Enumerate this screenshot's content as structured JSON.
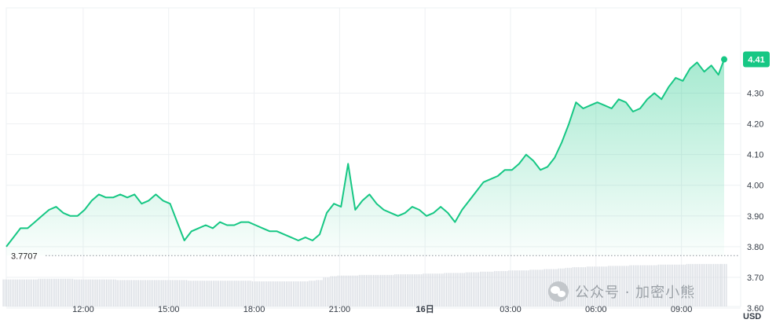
{
  "chart_data": {
    "type": "area",
    "ylim": [
      3.6,
      4.46
    ],
    "y_ticks": [
      "4.30",
      "4.20",
      "4.10",
      "4.00",
      "3.90",
      "3.80",
      "3.70",
      "3.60"
    ],
    "y_tick_values": [
      4.3,
      4.2,
      4.1,
      4.0,
      3.9,
      3.8,
      3.7,
      3.6
    ],
    "x_ticks": [
      "12:00",
      "15:00",
      "18:00",
      "21:00",
      "16日",
      "03:00",
      "06:00",
      "09:00"
    ],
    "x_tick_hours": [
      3,
      6,
      9,
      12,
      15,
      18,
      21,
      24
    ],
    "currency": "USD",
    "current_price": "4.41",
    "current_value": 4.41,
    "baseline_label": "3.7707",
    "baseline_value": 3.7707,
    "x_range_hours": [
      0.3,
      25.5
    ],
    "line_color": "#16c784",
    "watermark": "公众号 · 加密小熊",
    "series": [
      {
        "x": [
          0.3,
          0.55,
          0.8,
          1.05,
          1.3,
          1.55,
          1.8,
          2.05,
          2.3,
          2.55,
          2.8,
          3.05,
          3.3,
          3.55,
          3.8,
          4.05,
          4.3,
          4.55,
          4.8,
          5.05,
          5.3,
          5.55,
          5.8,
          6.05,
          6.3,
          6.55,
          6.8,
          7.05,
          7.3,
          7.55,
          7.8,
          8.05,
          8.3,
          8.55,
          8.8,
          9.05,
          9.3,
          9.55,
          9.8,
          10.05,
          10.3,
          10.55,
          10.8,
          11.05,
          11.3,
          11.55,
          11.8,
          12.05,
          12.3,
          12.55,
          12.8,
          13.05,
          13.3,
          13.55,
          13.8,
          14.05,
          14.3,
          14.55,
          14.8,
          15.05,
          15.3,
          15.55,
          15.8,
          16.05,
          16.3,
          16.55,
          16.8,
          17.05,
          17.3,
          17.55,
          17.8,
          18.05,
          18.3,
          18.55,
          18.8,
          19.05,
          19.3,
          19.55,
          19.8,
          20.05,
          20.3,
          20.55,
          20.8,
          21.05,
          21.3,
          21.55,
          21.8,
          22.05,
          22.3,
          22.55,
          22.8,
          23.05,
          23.3,
          23.55,
          23.8,
          24.05,
          24.3,
          24.55,
          24.8,
          25.05,
          25.3,
          25.5
        ],
        "values": [
          3.8,
          3.83,
          3.86,
          3.86,
          3.88,
          3.9,
          3.92,
          3.93,
          3.91,
          3.9,
          3.9,
          3.92,
          3.95,
          3.97,
          3.96,
          3.96,
          3.97,
          3.96,
          3.97,
          3.94,
          3.95,
          3.97,
          3.95,
          3.94,
          3.88,
          3.82,
          3.85,
          3.86,
          3.87,
          3.86,
          3.88,
          3.87,
          3.87,
          3.88,
          3.88,
          3.87,
          3.86,
          3.85,
          3.85,
          3.84,
          3.83,
          3.82,
          3.83,
          3.82,
          3.84,
          3.91,
          3.94,
          3.93,
          4.07,
          3.92,
          3.95,
          3.97,
          3.94,
          3.92,
          3.91,
          3.9,
          3.91,
          3.93,
          3.92,
          3.9,
          3.91,
          3.93,
          3.91,
          3.88,
          3.92,
          3.95,
          3.98,
          4.01,
          4.02,
          4.03,
          4.05,
          4.05,
          4.07,
          4.1,
          4.08,
          4.05,
          4.06,
          4.09,
          4.14,
          4.2,
          4.27,
          4.25,
          4.26,
          4.27,
          4.26,
          4.25,
          4.28,
          4.27,
          4.24,
          4.25,
          4.28,
          4.3,
          4.28,
          4.32,
          4.35,
          4.34,
          4.38,
          4.4,
          4.37,
          4.39,
          4.36,
          4.41
        ]
      }
    ],
    "volume": [
      0.42,
      0.42,
      0.42,
      0.42,
      0.42,
      0.43,
      0.43,
      0.43,
      0.43,
      0.43,
      0.42,
      0.42,
      0.42,
      0.42,
      0.42,
      0.42,
      0.41,
      0.41,
      0.41,
      0.41,
      0.41,
      0.41,
      0.41,
      0.41,
      0.41,
      0.41,
      0.4,
      0.4,
      0.4,
      0.4,
      0.4,
      0.4,
      0.4,
      0.4,
      0.4,
      0.39,
      0.39,
      0.39,
      0.39,
      0.39,
      0.39,
      0.39,
      0.39,
      0.4,
      0.41,
      0.45,
      0.47,
      0.48,
      0.48,
      0.48,
      0.49,
      0.49,
      0.49,
      0.49,
      0.49,
      0.5,
      0.5,
      0.5,
      0.5,
      0.51,
      0.51,
      0.51,
      0.52,
      0.52,
      0.52,
      0.53,
      0.53,
      0.54,
      0.54,
      0.55,
      0.55,
      0.56,
      0.56,
      0.56,
      0.57,
      0.57,
      0.58,
      0.58,
      0.59,
      0.6,
      0.61,
      0.61,
      0.62,
      0.62,
      0.62,
      0.63,
      0.63,
      0.63,
      0.64,
      0.64,
      0.64,
      0.64,
      0.65,
      0.65,
      0.65,
      0.65,
      0.66,
      0.66,
      0.66,
      0.66,
      0.66,
      0.66
    ]
  }
}
